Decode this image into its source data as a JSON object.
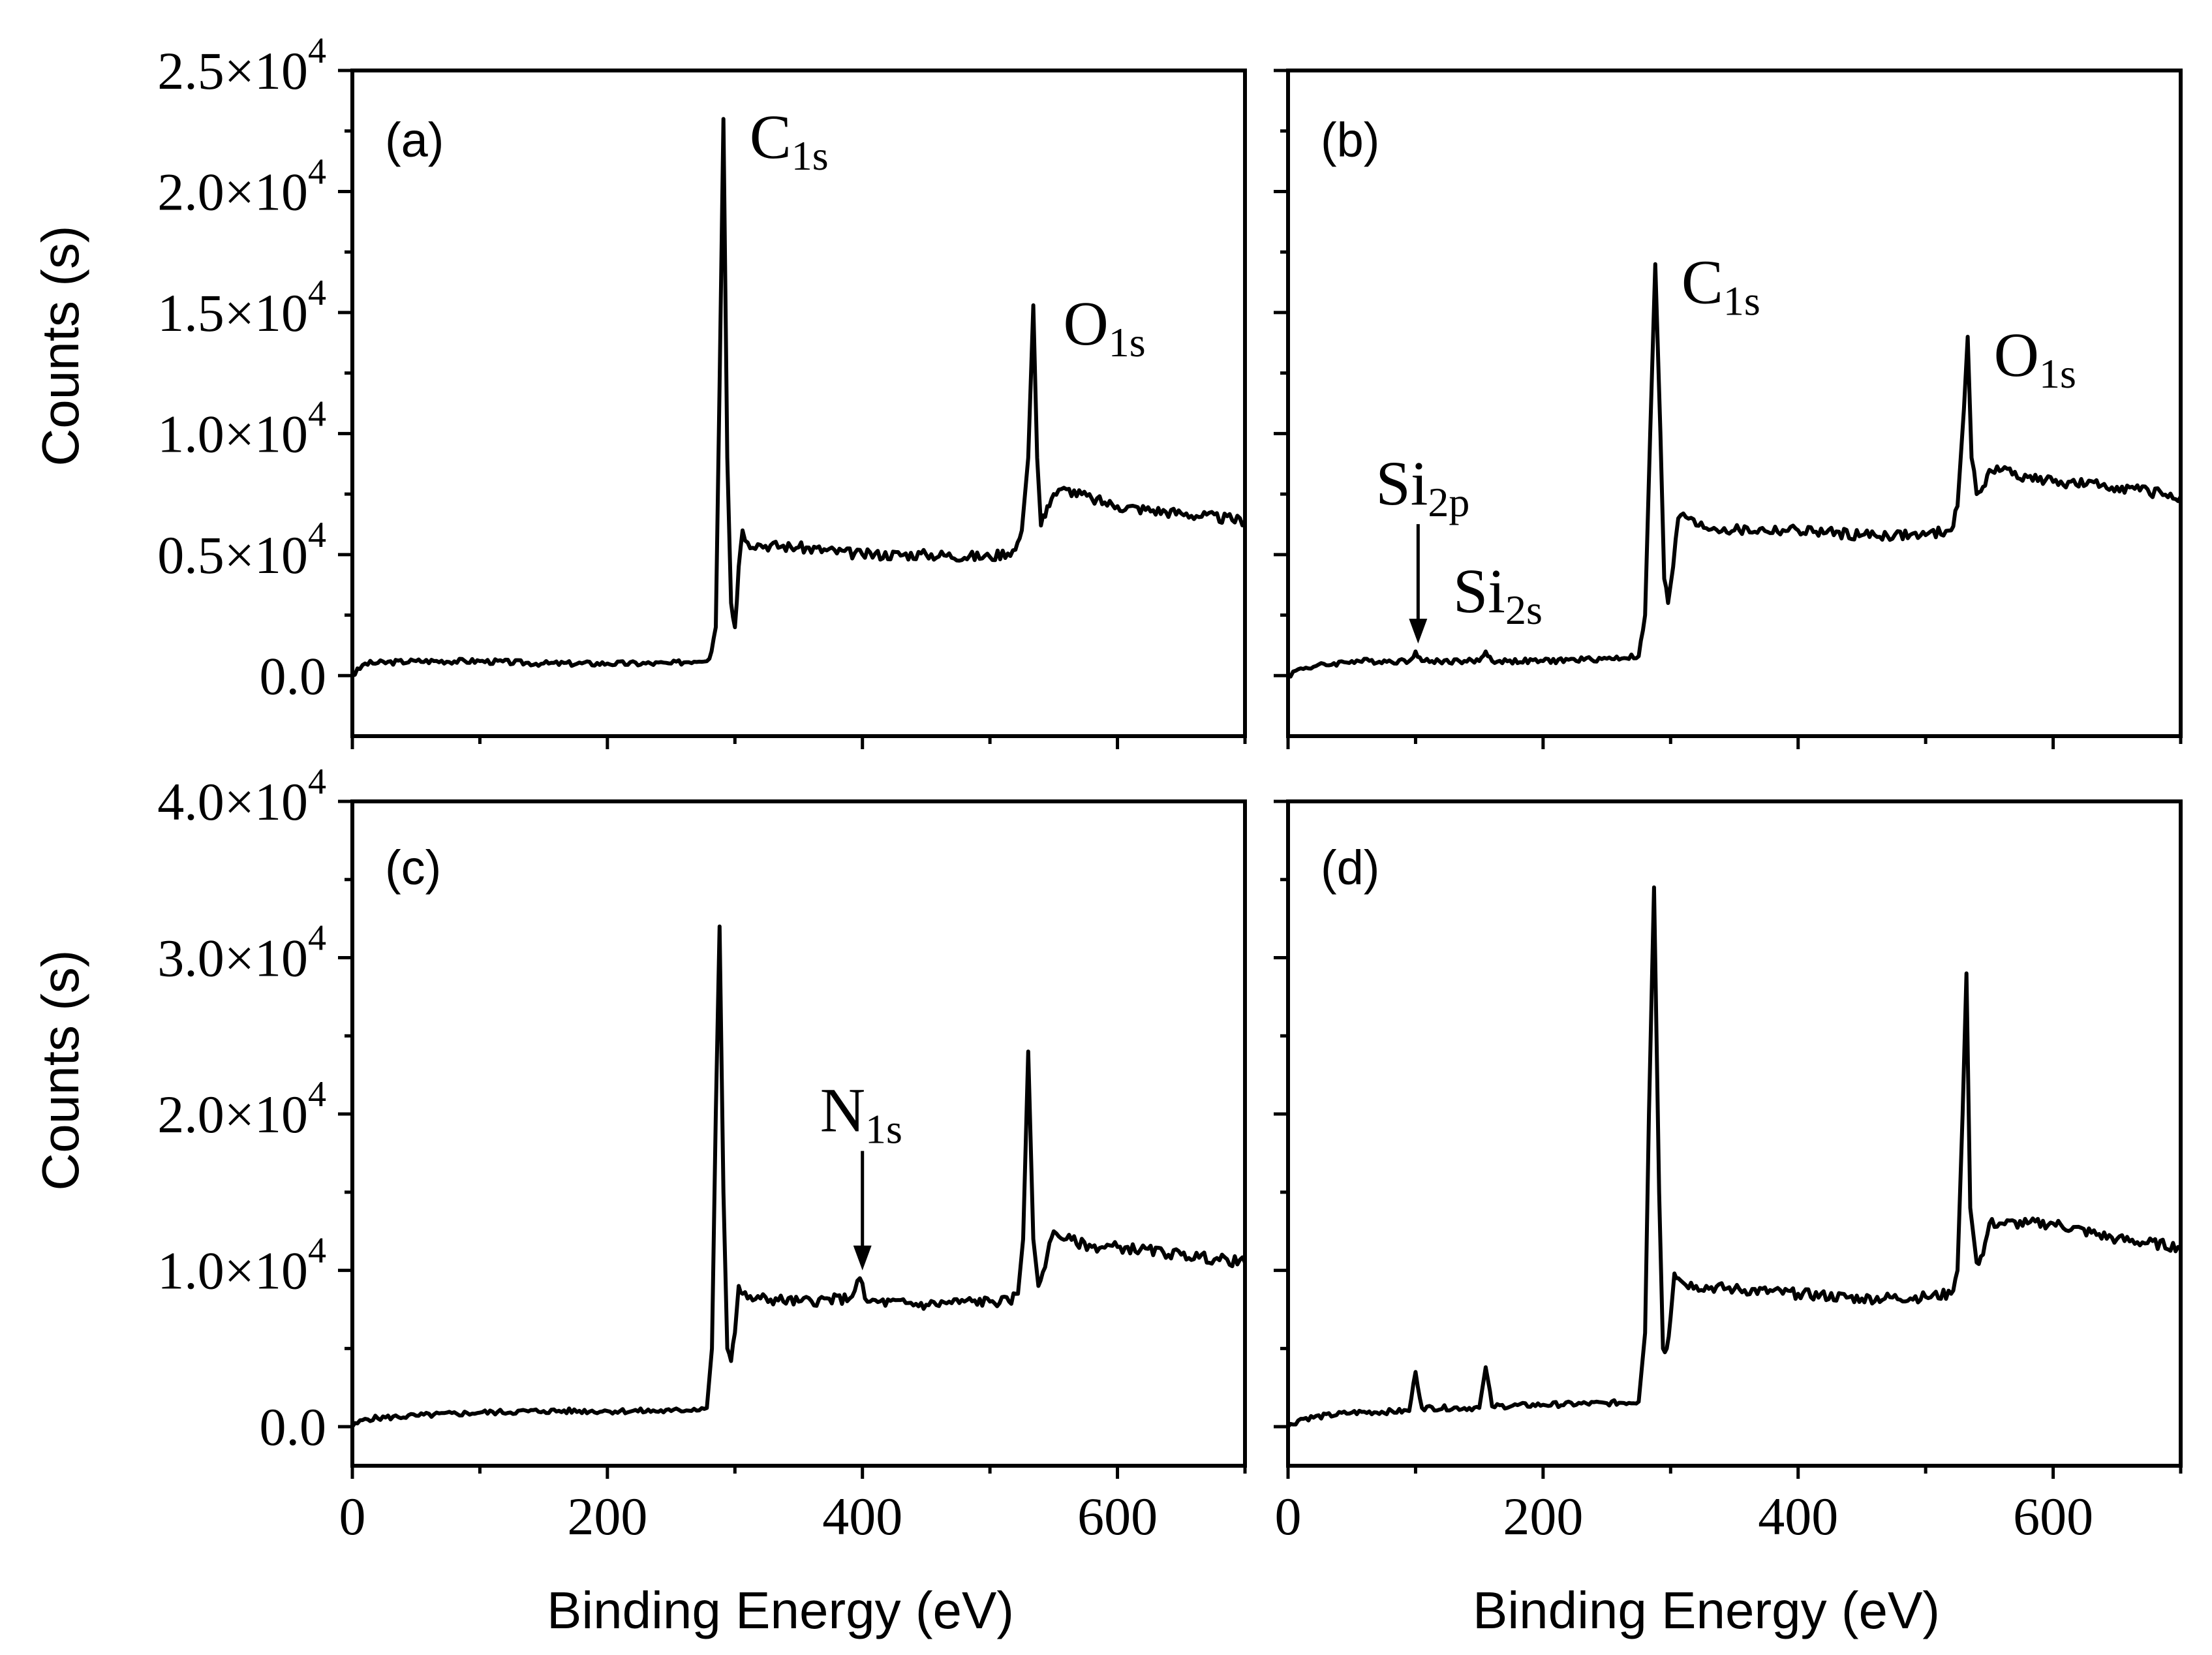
{
  "chart_data": [
    {
      "type": "line",
      "panel_label": "(a)",
      "xlabel": "",
      "ylabel": "Counts (s)",
      "xlim": [
        0,
        700
      ],
      "ylim": [
        -2500,
        25000
      ],
      "x_ticks": [
        0,
        200,
        400,
        600
      ],
      "y_ticks": [
        {
          "value": 0,
          "mant": "0.0",
          "exp": ""
        },
        {
          "value": 5000,
          "mant": "0.5×10",
          "exp": "4"
        },
        {
          "value": 10000,
          "mant": "1.0×10",
          "exp": "4"
        },
        {
          "value": 15000,
          "mant": "1.5×10",
          "exp": "4"
        },
        {
          "value": 20000,
          "mant": "2.0×10",
          "exp": "4"
        },
        {
          "value": 25000,
          "mant": "2.5×10",
          "exp": "4"
        }
      ],
      "series": [
        {
          "name": "(a)",
          "x": [
            0,
            10,
            50,
            100,
            150,
            200,
            250,
            280,
            285,
            288,
            291,
            294,
            297,
            300,
            303,
            306,
            310,
            320,
            350,
            400,
            450,
            500,
            520,
            525,
            530,
            534,
            537,
            540,
            545,
            550,
            560,
            580,
            600,
            650,
            700
          ],
          "y": [
            0,
            500,
            600,
            600,
            500,
            500,
            500,
            700,
            2000,
            12000,
            23000,
            9000,
            3000,
            2000,
            4500,
            6000,
            5500,
            5400,
            5300,
            5000,
            5000,
            4900,
            5200,
            6000,
            9000,
            15300,
            9000,
            6200,
            7000,
            7500,
            7700,
            7300,
            7000,
            6700,
            6400
          ]
        }
      ],
      "annotations": [
        {
          "base": "C",
          "sub": "1s",
          "x": 291,
          "y": 23000
        },
        {
          "base": "O",
          "sub": "1s",
          "x": 537,
          "y": 15300
        }
      ]
    },
    {
      "type": "line",
      "panel_label": "(b)",
      "xlabel": "",
      "ylabel": "",
      "xlim": [
        0,
        700
      ],
      "ylim": [
        -2500,
        25000
      ],
      "x_ticks": [
        0,
        200,
        400,
        600
      ],
      "y_ticks": [],
      "series": [
        {
          "name": "(b)",
          "x": [
            0,
            10,
            50,
            95,
            100,
            105,
            150,
            155,
            160,
            200,
            250,
            275,
            280,
            284,
            288,
            292,
            295,
            298,
            302,
            306,
            310,
            320,
            350,
            400,
            450,
            500,
            520,
            525,
            530,
            533,
            536,
            540,
            545,
            550,
            560,
            580,
            600,
            650,
            700
          ],
          "y": [
            0,
            300,
            600,
            600,
            1000,
            600,
            600,
            1000,
            600,
            600,
            700,
            800,
            2500,
            10000,
            17000,
            10000,
            4000,
            3000,
            4500,
            6500,
            6700,
            6200,
            6000,
            6000,
            5800,
            5800,
            6000,
            7000,
            11000,
            14000,
            9000,
            7500,
            7800,
            8500,
            8500,
            8200,
            8000,
            7800,
            7400
          ]
        }
      ],
      "annotations": [
        {
          "base": "Si",
          "sub": "2p",
          "x": 102,
          "y": 1000,
          "arrow": true
        },
        {
          "base": "Si",
          "sub": "2s",
          "x": 155,
          "y": 1000
        },
        {
          "base": "C",
          "sub": "1s",
          "x": 288,
          "y": 17000
        },
        {
          "base": "O",
          "sub": "1s",
          "x": 533,
          "y": 14000
        }
      ]
    },
    {
      "type": "line",
      "panel_label": "(c)",
      "xlabel": "Binding Energy (eV)",
      "ylabel": "Counts (s)",
      "xlim": [
        0,
        700
      ],
      "ylim": [
        -2500,
        40000
      ],
      "x_ticks": [
        0,
        200,
        400,
        600
      ],
      "y_ticks": [
        {
          "value": 0,
          "mant": "0.0",
          "exp": ""
        },
        {
          "value": 10000,
          "mant": "1.0×10",
          "exp": "4"
        },
        {
          "value": 20000,
          "mant": "2.0×10",
          "exp": "4"
        },
        {
          "value": 30000,
          "mant": "3.0×10",
          "exp": "4"
        },
        {
          "value": 40000,
          "mant": "4.0×10",
          "exp": "4"
        }
      ],
      "series": [
        {
          "name": "(c)",
          "x": [
            0,
            10,
            50,
            100,
            150,
            200,
            250,
            278,
            282,
            285,
            288,
            291,
            294,
            297,
            300,
            303,
            306,
            310,
            320,
            350,
            390,
            398,
            402,
            406,
            450,
            480,
            500,
            515,
            522,
            526,
            530,
            534,
            538,
            545,
            550,
            560,
            580,
            600,
            650,
            700
          ],
          "y": [
            0,
            500,
            700,
            900,
            1000,
            1000,
            1000,
            1200,
            5000,
            20000,
            32000,
            15000,
            5000,
            4200,
            6000,
            9000,
            8500,
            8200,
            8200,
            8000,
            8200,
            9500,
            8200,
            8000,
            7800,
            8000,
            8000,
            8000,
            8500,
            12000,
            24000,
            12000,
            9000,
            11000,
            12500,
            12000,
            11500,
            11500,
            11000,
            10500
          ]
        }
      ],
      "annotations": [
        {
          "base": "N",
          "sub": "1s",
          "x": 400,
          "y": 9500,
          "arrow": true
        }
      ]
    },
    {
      "type": "line",
      "panel_label": "(d)",
      "xlabel": "Binding Energy (eV)",
      "ylabel": "",
      "xlim": [
        0,
        700
      ],
      "ylim": [
        -2500,
        40000
      ],
      "x_ticks": [
        0,
        200,
        400,
        600
      ],
      "y_ticks": [],
      "series": [
        {
          "name": "(d)",
          "x": [
            0,
            10,
            50,
            95,
            100,
            105,
            150,
            155,
            160,
            200,
            250,
            275,
            280,
            283,
            287,
            291,
            294,
            297,
            300,
            303,
            306,
            310,
            320,
            350,
            400,
            450,
            500,
            520,
            525,
            529,
            532,
            535,
            540,
            545,
            550,
            560,
            580,
            600,
            650,
            700
          ],
          "y": [
            0,
            500,
            900,
            1000,
            3500,
            1200,
            1200,
            3800,
            1300,
            1400,
            1500,
            1600,
            6000,
            20000,
            34500,
            15000,
            5000,
            5000,
            7000,
            9800,
            9500,
            9200,
            9000,
            8800,
            8500,
            8200,
            8300,
            8500,
            10000,
            20000,
            29000,
            14000,
            10500,
            11000,
            13000,
            13000,
            13000,
            13000,
            12000,
            11500
          ]
        }
      ],
      "annotations": []
    }
  ]
}
